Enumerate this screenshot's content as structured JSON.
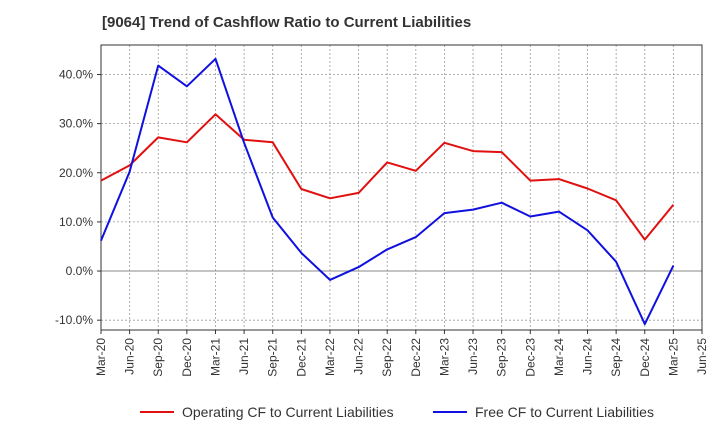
{
  "title": "[9064]  Trend of Cashflow Ratio to Current Liabilities",
  "chart_data": {
    "type": "line",
    "title": "[9064]  Trend of Cashflow Ratio to Current Liabilities",
    "xlabel": "",
    "ylabel": "",
    "x": [
      "Mar-20",
      "Jun-20",
      "Sep-20",
      "Dec-20",
      "Mar-21",
      "Jun-21",
      "Sep-21",
      "Dec-21",
      "Mar-22",
      "Jun-22",
      "Sep-22",
      "Dec-22",
      "Mar-23",
      "Jun-23",
      "Sep-23",
      "Dec-23",
      "Mar-24",
      "Jun-24",
      "Sep-24",
      "Dec-24",
      "Mar-25"
    ],
    "x_ticks": [
      "Mar-20",
      "Jun-20",
      "Sep-20",
      "Dec-20",
      "Mar-21",
      "Jun-21",
      "Sep-21",
      "Dec-21",
      "Mar-22",
      "Jun-22",
      "Sep-22",
      "Dec-22",
      "Mar-23",
      "Jun-23",
      "Sep-23",
      "Dec-23",
      "Mar-24",
      "Jun-24",
      "Sep-24",
      "Dec-24",
      "Mar-25",
      "Jun-25"
    ],
    "y_ticks": [
      -10,
      0,
      10,
      20,
      30,
      40
    ],
    "y_tick_labels": [
      "-10.0%",
      "0.0%",
      "10.0%",
      "20.0%",
      "30.0%",
      "40.0%"
    ],
    "ylim": [
      -12,
      46
    ],
    "grid": true,
    "legend_position": "bottom",
    "series": [
      {
        "name": "Operating CF to Current Liabilities",
        "color": "#e01010",
        "values": [
          18.4,
          21.5,
          27.2,
          26.2,
          31.9,
          26.7,
          26.2,
          16.7,
          14.8,
          15.9,
          22.1,
          20.4,
          26.1,
          24.4,
          24.2,
          18.4,
          18.7,
          16.8,
          14.4,
          6.4,
          13.5
        ]
      },
      {
        "name": "Free CF to Current Liabilities",
        "color": "#1010e0",
        "values": [
          6.2,
          20.2,
          41.8,
          37.6,
          43.2,
          26.1,
          10.9,
          3.7,
          -1.8,
          0.8,
          4.4,
          6.9,
          11.8,
          12.5,
          13.9,
          11.1,
          12.1,
          8.3,
          1.9,
          -10.8,
          1.1
        ]
      }
    ]
  }
}
